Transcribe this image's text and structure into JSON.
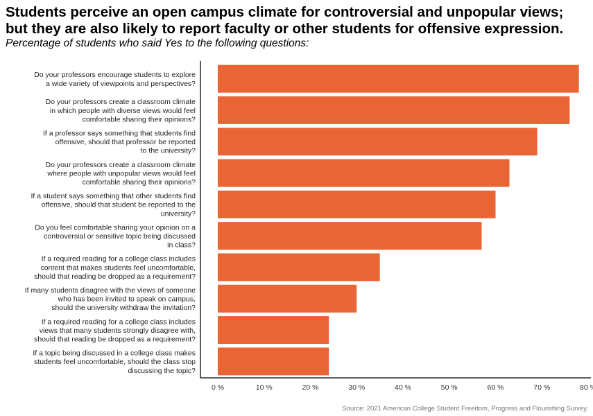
{
  "title_line1": "Students perceive an open campus climate for controversial and unpopular views;",
  "title_line2": "but they are also likely to report faculty or other students for offensive expression.",
  "subtitle": "Percentage of students who said Yes to the following questions:",
  "source": "Source: 2021 American College Student Freedom, Progress and Flourishing Survey.",
  "colors": {
    "bar": "#E96535",
    "axis": "#000000",
    "text": "#222222"
  },
  "chart_data": {
    "type": "bar",
    "orientation": "horizontal",
    "title": "Students perceive an open campus climate for controversial and unpopular views; but they are also likely to report faculty or other students for offensive expression.",
    "subtitle": "Percentage of students who said Yes to the following questions:",
    "xlabel": "",
    "ylabel": "",
    "xlim": [
      0,
      80
    ],
    "x_ticks": [
      0,
      10,
      20,
      30,
      40,
      50,
      60,
      70,
      80
    ],
    "x_tick_labels": [
      "0 %",
      "10 %",
      "20 %",
      "30 %",
      "40 %",
      "50 %",
      "60 %",
      "70 %",
      "80 %"
    ],
    "grid": false,
    "legend": "none",
    "categories": [
      [
        "Do your professors encourage students to explore",
        "a wide variety of viewpoints and perspectives?"
      ],
      [
        "Do your professors create a classroom climate",
        "in which people with diverse views would feel",
        "comfortable sharing their opinions?"
      ],
      [
        "If a professor says something that students find",
        "offensive, should that professor be reported",
        "to the university?"
      ],
      [
        "Do your professors create a classroom climate",
        "where people with unpopular views would feel",
        "comfortable sharing their opinions?"
      ],
      [
        "If a student says something that other students find",
        "offensive, should that student be reported to the",
        "university?"
      ],
      [
        "Do you feel comfortable sharing your opinion on a",
        "controversial or sensitive topic being discussed",
        "in class?"
      ],
      [
        "If a required reading for a college class includes",
        "content that makes students feel uncomfortable,",
        "should that reading be dropped as a requirement?"
      ],
      [
        "If many students disagree with the views of someone",
        "who has been invited to speak on campus,",
        "should the university withdraw the invitation?"
      ],
      [
        "If a required reading for a college class includes",
        "views that many students strongly disagree with,",
        "should that reading be dropped as a requirement?"
      ],
      [
        "If a topic being discussed in a college class makes",
        "students feel uncomfortable, should the class stop",
        "discussing the topic?"
      ]
    ],
    "values": [
      78,
      76,
      69,
      63,
      60,
      57,
      35,
      30,
      24,
      24
    ]
  }
}
